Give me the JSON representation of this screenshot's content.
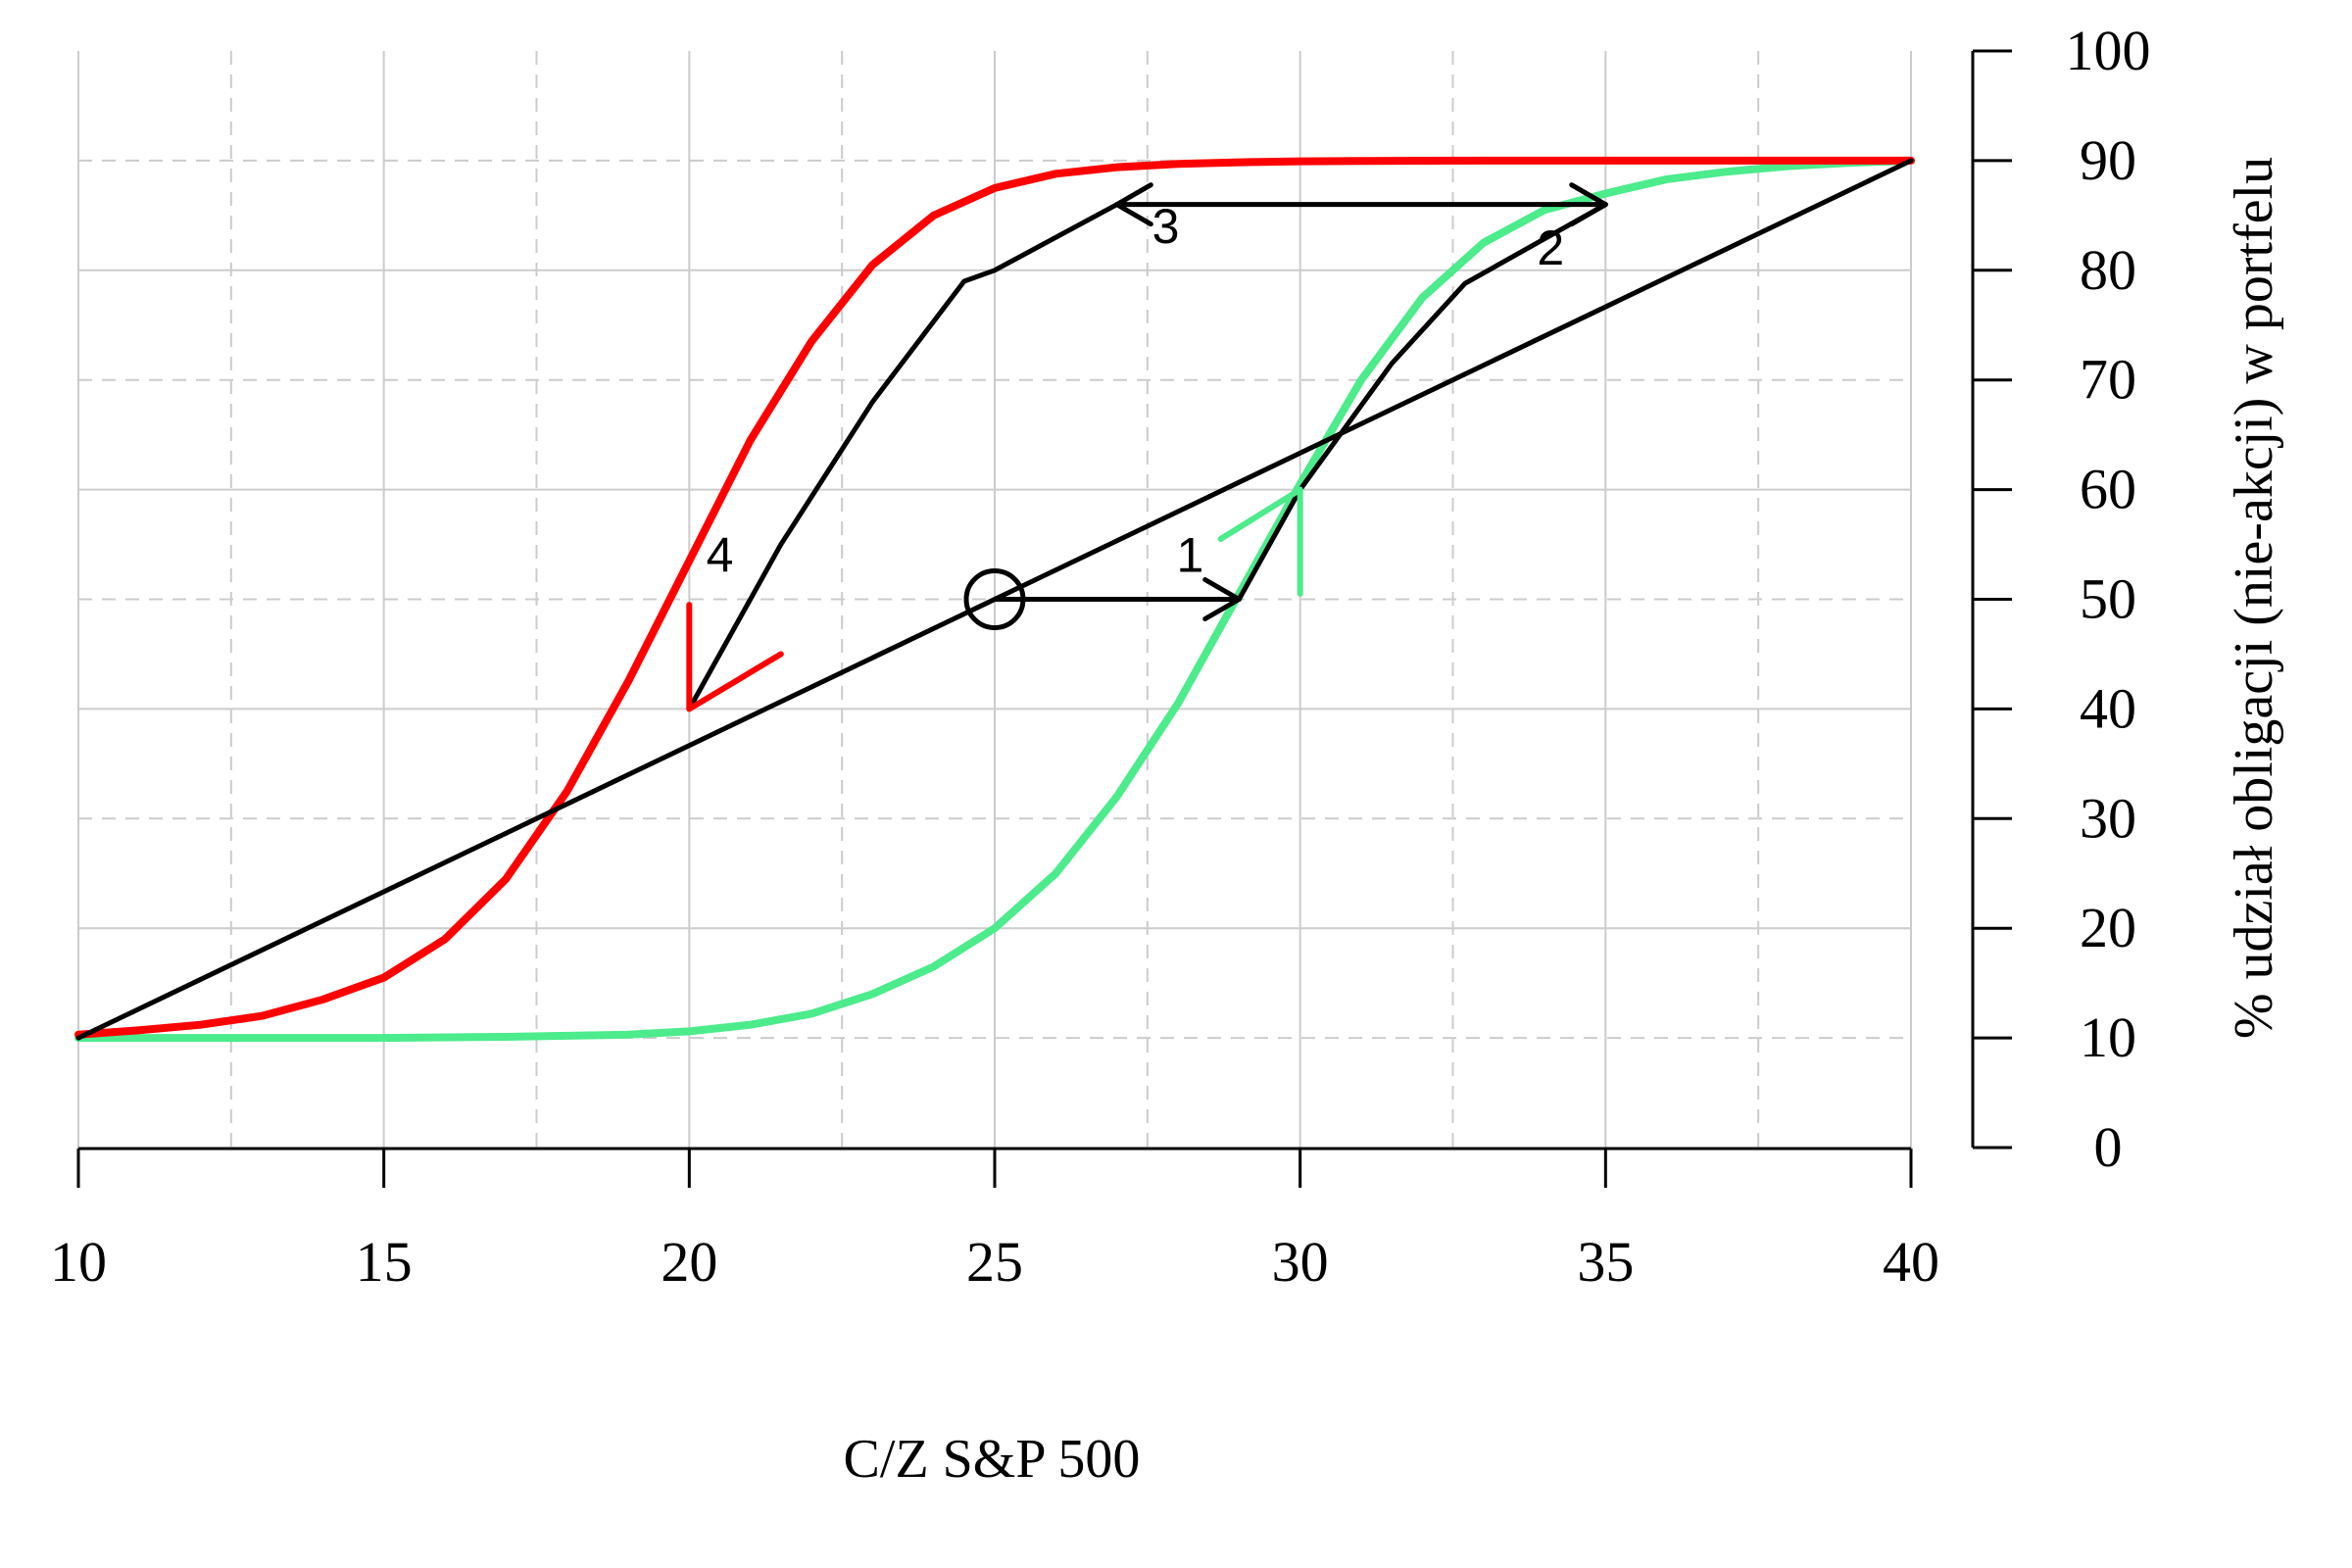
{
  "chart_data": {
    "type": "line",
    "title": "",
    "xlabel": "C/Z S&P 500",
    "ylabel": "% udział obligacji (nie-akcji) w portfelu",
    "xlim": [
      10,
      40
    ],
    "ylim": [
      0,
      100
    ],
    "x_ticks": [
      10,
      15,
      20,
      25,
      30,
      35,
      40
    ],
    "y_ticks": [
      0,
      10,
      20,
      30,
      40,
      50,
      60,
      70,
      80,
      90,
      100
    ],
    "y_axis_side": "right",
    "grid": true,
    "legend": "none",
    "colors": {
      "red": "#ff0000",
      "green": "#4ceb8c",
      "black": "#000000",
      "grid": "#cccccc"
    },
    "series": [
      {
        "color": "#ff0000",
        "x": [
          10,
          11,
          12,
          13,
          14,
          15,
          16,
          17,
          18,
          19,
          20,
          21,
          22,
          23,
          24,
          25,
          26,
          27,
          28,
          29,
          30,
          31,
          32,
          33,
          34,
          35,
          36,
          37,
          38,
          39,
          40
        ],
        "y": [
          10.3,
          10.7,
          11.2,
          12.0,
          13.5,
          15.5,
          19.0,
          24.5,
          32.5,
          42.5,
          53.5,
          64.5,
          73.5,
          80.5,
          85.0,
          87.5,
          88.8,
          89.4,
          89.7,
          89.85,
          89.93,
          89.97,
          89.99,
          90,
          90,
          90,
          90,
          90,
          90,
          90,
          90
        ]
      },
      {
        "color": "#4ceb8c",
        "x": [
          10,
          15,
          17,
          19,
          20,
          21,
          22,
          23,
          24,
          25,
          26,
          27,
          28,
          29,
          30,
          31,
          32,
          33,
          34,
          35,
          36,
          37,
          38,
          39,
          40
        ],
        "y": [
          10,
          10,
          10.1,
          10.3,
          10.6,
          11.2,
          12.2,
          14.0,
          16.5,
          20.0,
          25.0,
          32.0,
          40.5,
          50.5,
          60.5,
          70.0,
          77.5,
          82.5,
          85.5,
          87.0,
          88.3,
          89.0,
          89.5,
          89.8,
          90
        ]
      },
      {
        "color": "#000000",
        "x": [
          10,
          40
        ],
        "y": [
          10,
          90
        ]
      }
    ],
    "path_segments": [
      {
        "color": "#000000",
        "x": [
          25,
          29
        ],
        "y": [
          50,
          50
        ]
      },
      {
        "color": "#000000",
        "x": [
          29,
          30,
          31.5,
          32.7,
          35
        ],
        "y": [
          50,
          60,
          71.5,
          78.8,
          86
        ]
      },
      {
        "color": "#000000",
        "x": [
          35,
          27
        ],
        "y": [
          86,
          86
        ]
      },
      {
        "color": "#000000",
        "x": [
          27,
          25,
          24.5,
          23,
          21.5,
          20
        ],
        "y": [
          86,
          80,
          79,
          68,
          55,
          40
        ]
      }
    ],
    "arrowheads": [
      {
        "color": "#000000",
        "tip": [
          29,
          50
        ],
        "from": [
          25,
          50
        ]
      },
      {
        "color": "#000000",
        "tip": [
          35,
          86
        ],
        "from": [
          27,
          86
        ]
      },
      {
        "color": "#000000",
        "tip": [
          27,
          86
        ],
        "from": [
          35,
          86
        ]
      },
      {
        "color": "#4ceb8c",
        "tip": [
          30,
          60
        ],
        "from": [
          28.7,
          55.5
        ],
        "from2": [
          30,
          50.5
        ]
      },
      {
        "color": "#ff0000",
        "tip": [
          20,
          40
        ],
        "from": [
          20,
          49.5
        ],
        "from2": [
          21.5,
          45
        ]
      }
    ],
    "marker": {
      "x": 25,
      "y": 50,
      "shape": "open-circle"
    },
    "annotations": [
      {
        "text": "1",
        "x": 28.2,
        "y": 52.5
      },
      {
        "text": "2",
        "x": 34.1,
        "y": 80.5
      },
      {
        "text": "3",
        "x": 27.8,
        "y": 82.5
      },
      {
        "text": "4",
        "x": 20.5,
        "y": 52.5
      }
    ]
  }
}
